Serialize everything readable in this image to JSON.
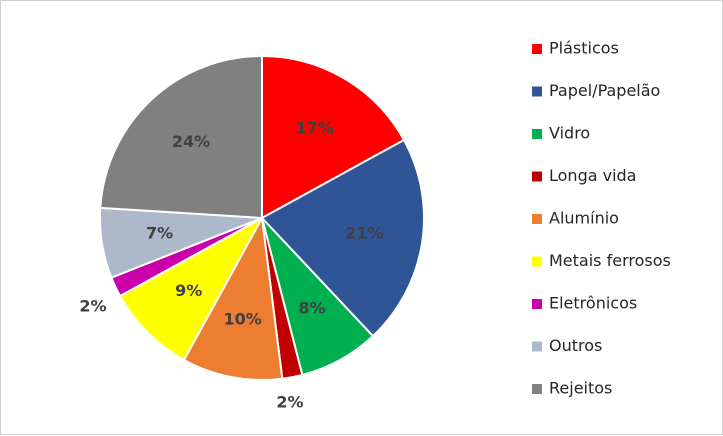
{
  "chart_data": {
    "type": "pie",
    "title": "",
    "categories": [
      "Plásticos",
      "Papel/Papelão",
      "Vidro",
      "Longa vida",
      "Alumínio",
      "Metais ferrosos",
      "Eletrônicos",
      "Outros",
      "Rejeitos"
    ],
    "values": [
      17,
      21,
      8,
      2,
      10,
      9,
      2,
      7,
      24
    ],
    "data_labels": [
      "17%",
      "21%",
      "8%",
      "2%",
      "10%",
      "9%",
      "2%",
      "7%",
      "24%"
    ],
    "colors": [
      "#ff0000",
      "#2f5597",
      "#00b050",
      "#c00000",
      "#ed7d31",
      "#ffff00",
      "#cc00aa",
      "#adb9ca",
      "#808080"
    ],
    "legend": {
      "position": "right",
      "entries": [
        "Plásticos",
        "Papel/Papelão",
        "Vidro",
        "Longa vida",
        "Alumínio",
        "Metais ferrosos",
        "Eletrônicos",
        "Outros",
        "Rejeitos"
      ]
    },
    "start_angle": "12 o'clock",
    "direction": "clockwise"
  }
}
